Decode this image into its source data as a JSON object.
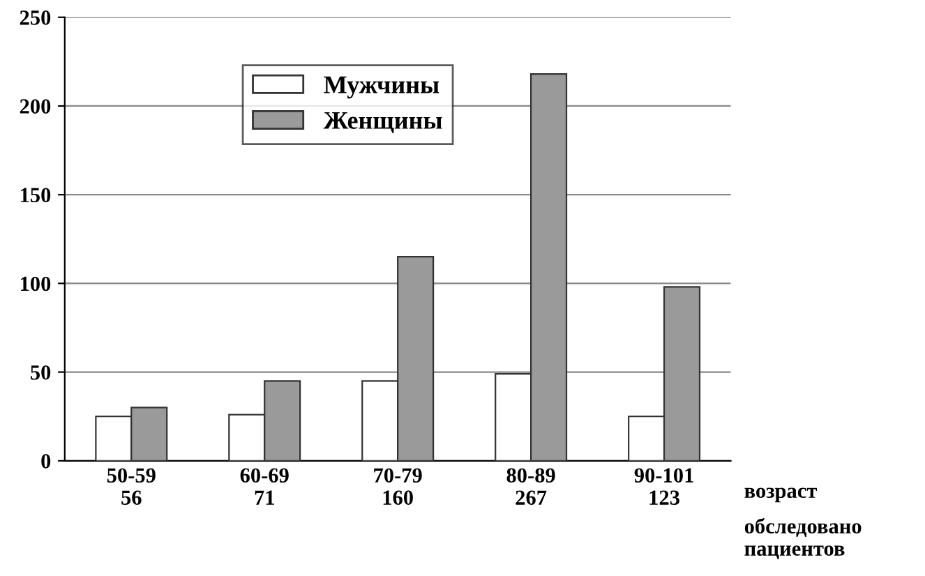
{
  "chart_data": {
    "type": "bar",
    "categories": [
      "50-59\n56",
      "60-69\n71",
      "70-79\n160",
      "80-89\n267",
      "90-101\n123"
    ],
    "series": [
      {
        "name": "Мужчины",
        "color": "#ffffff",
        "values": [
          25,
          26,
          45,
          49,
          25
        ]
      },
      {
        "name": "Женщины",
        "color": "#9a9a9a",
        "values": [
          30,
          45,
          115,
          218,
          98
        ]
      }
    ],
    "ylim": [
      0,
      250
    ],
    "yticks": [
      0,
      50,
      100,
      150,
      200,
      250
    ],
    "grid": "y",
    "legend": "top",
    "annotations": [
      "возраст",
      "обследовано\nпациентов"
    ]
  }
}
